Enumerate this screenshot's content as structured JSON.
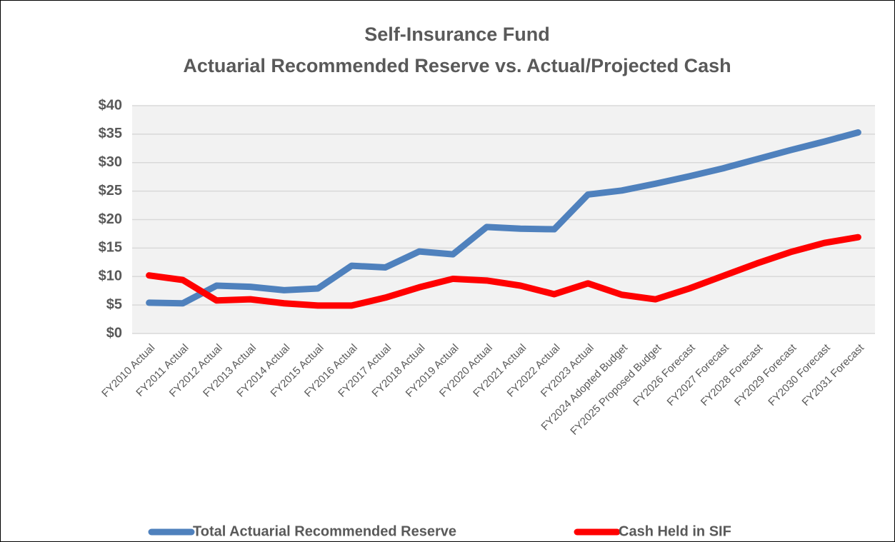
{
  "chart_data": {
    "type": "line",
    "title": "Self-Insurance Fund",
    "subtitle": "Actuarial Recommended Reserve vs. Actual/Projected Cash",
    "categories": [
      "FY2010 Actual",
      "FY2011 Actual",
      "FY2012 Actual",
      "FY2013 Actual",
      "FY2014 Actual",
      "FY2015 Actual",
      "FY2016 Actual",
      "FY2017 Actual",
      "FY2018 Actual",
      "FY2019 Actual",
      "FY2020 Actual",
      "FY2021 Actual",
      "FY2022 Actual",
      "FY2023 Actual",
      "FY2024 Adopted Budget",
      "FY2025 Proposed Budget",
      "FY2026 Forecast",
      "FY2027 Forecast",
      "FY2028 Forecast",
      "FY2029 Forecast",
      "FY2030 Forecast",
      "FY2031 Forecast"
    ],
    "series": [
      {
        "name": "Total Actuarial Recommended Reserve",
        "color": "#4f81bd",
        "values": [
          5.4,
          5.3,
          8.4,
          8.2,
          7.6,
          7.9,
          11.9,
          11.6,
          14.4,
          13.9,
          18.7,
          18.4,
          18.3,
          24.4,
          25.1,
          26.3,
          27.6,
          29.0,
          30.6,
          32.2,
          33.7,
          35.3
        ]
      },
      {
        "name": "Cash Held in SIF",
        "color": "#ff0000",
        "values": [
          10.2,
          9.4,
          5.8,
          6.0,
          5.3,
          4.9,
          4.9,
          6.3,
          8.1,
          9.6,
          9.3,
          8.4,
          6.9,
          8.8,
          6.8,
          6.0,
          7.9,
          10.1,
          12.3,
          14.3,
          15.9,
          16.9
        ]
      }
    ],
    "ylim": [
      0,
      40
    ],
    "yticks": [
      {
        "value": 0,
        "label": "$0"
      },
      {
        "value": 5,
        "label": "$5"
      },
      {
        "value": 10,
        "label": "$10"
      },
      {
        "value": 15,
        "label": "$15"
      },
      {
        "value": 20,
        "label": "$20"
      },
      {
        "value": 25,
        "label": "$25"
      },
      {
        "value": 30,
        "label": "$30"
      },
      {
        "value": 35,
        "label": "$35"
      },
      {
        "value": 40,
        "label": "$40"
      }
    ],
    "grid": true,
    "legend": "bottom"
  }
}
